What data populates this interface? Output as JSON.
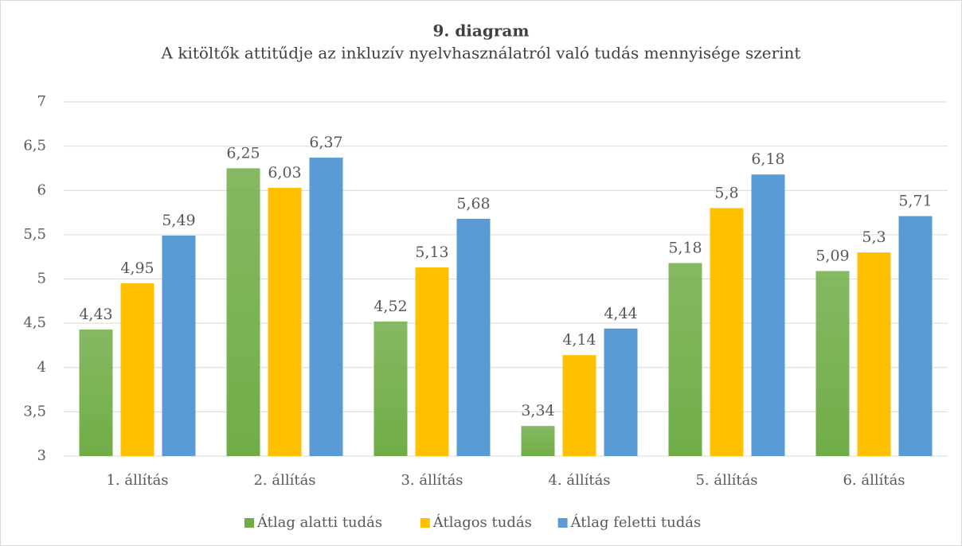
{
  "chart_data": {
    "type": "bar",
    "title": "9. diagram",
    "subtitle": "A kitöltők attitűdje az inkluzív nyelvhasználatról való tudás mennyisége szerint",
    "categories": [
      "1. állítás",
      "2. állítás",
      "3. állítás",
      "4. állítás",
      "5. állítás",
      "6. állítás"
    ],
    "series": [
      {
        "name": "Átlag alatti tudás",
        "color": "#70ad47",
        "values": [
          4.43,
          6.25,
          4.52,
          3.34,
          5.18,
          5.09
        ],
        "value_labels": [
          "4,43",
          "6,25",
          "4,52",
          "3,34",
          "5,18",
          "5,09"
        ]
      },
      {
        "name": "Átlagos tudás",
        "color": "#ffc000",
        "values": [
          4.95,
          6.03,
          5.13,
          4.14,
          5.8,
          5.3
        ],
        "value_labels": [
          "4,95",
          "6,03",
          "5,13",
          "4,14",
          "5,8",
          "5,3"
        ]
      },
      {
        "name": "Átlag feletti tudás",
        "color": "#5b9bd5",
        "values": [
          5.49,
          6.37,
          5.68,
          4.44,
          6.18,
          5.71
        ],
        "value_labels": [
          "5,49",
          "6,37",
          "5,68",
          "4,44",
          "6,18",
          "5,71"
        ]
      }
    ],
    "ylim": [
      3,
      7
    ],
    "yticks": [
      3,
      {
        "value": 3.5,
        "label": "3,5"
      },
      4,
      {
        "value": 4.5,
        "label": "4,5"
      },
      5,
      {
        "value": 5.5,
        "label": "5,5"
      },
      6,
      {
        "value": 6.5,
        "label": "6,5"
      },
      7
    ],
    "grid": true,
    "legend": "bottom"
  }
}
